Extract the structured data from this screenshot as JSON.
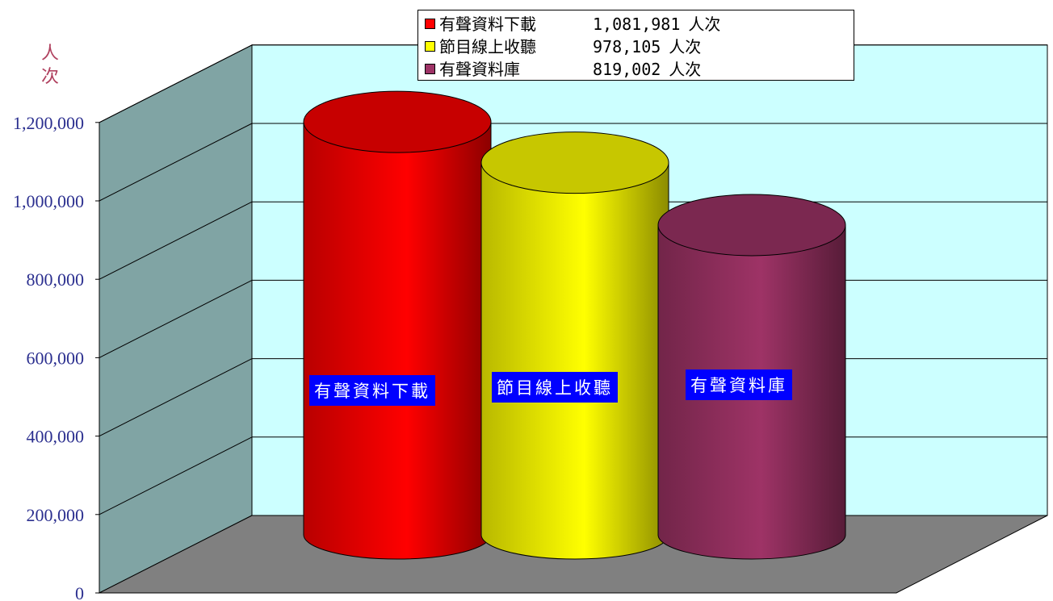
{
  "chart_data": {
    "type": "bar",
    "style": "3d-cylinder",
    "categories": [
      "有聲資料下載",
      "節目線上收聽",
      "有聲資料庫"
    ],
    "values": [
      1081981,
      978105,
      819002
    ],
    "colors": [
      "#ff0000",
      "#ffff00",
      "#9e3366"
    ],
    "ylabel_chars": [
      "人",
      "次"
    ],
    "yticks": [
      "0",
      "200,000",
      "400,000",
      "600,000",
      "800,000",
      "1,000,000",
      "1,200,000"
    ],
    "ylim": [
      0,
      1200000
    ],
    "grid": true,
    "legend": {
      "placement": "top",
      "unit": "人次",
      "entries": [
        {
          "name": "有聲資料下載",
          "value_label": "1,081,981",
          "color": "#ff0000"
        },
        {
          "name": "節目線上收聽",
          "value_label": "978,105",
          "color": "#ffff00"
        },
        {
          "name": "有聲資料庫",
          "value_label": "819,002",
          "color": "#9e3366"
        }
      ]
    },
    "bar_labels": [
      "有聲資料下載",
      "節目線上收聽",
      "有聲資料庫"
    ],
    "wall_colors": {
      "back": "#ccffff",
      "side": "#80a4a4",
      "floor": "#808080"
    }
  }
}
